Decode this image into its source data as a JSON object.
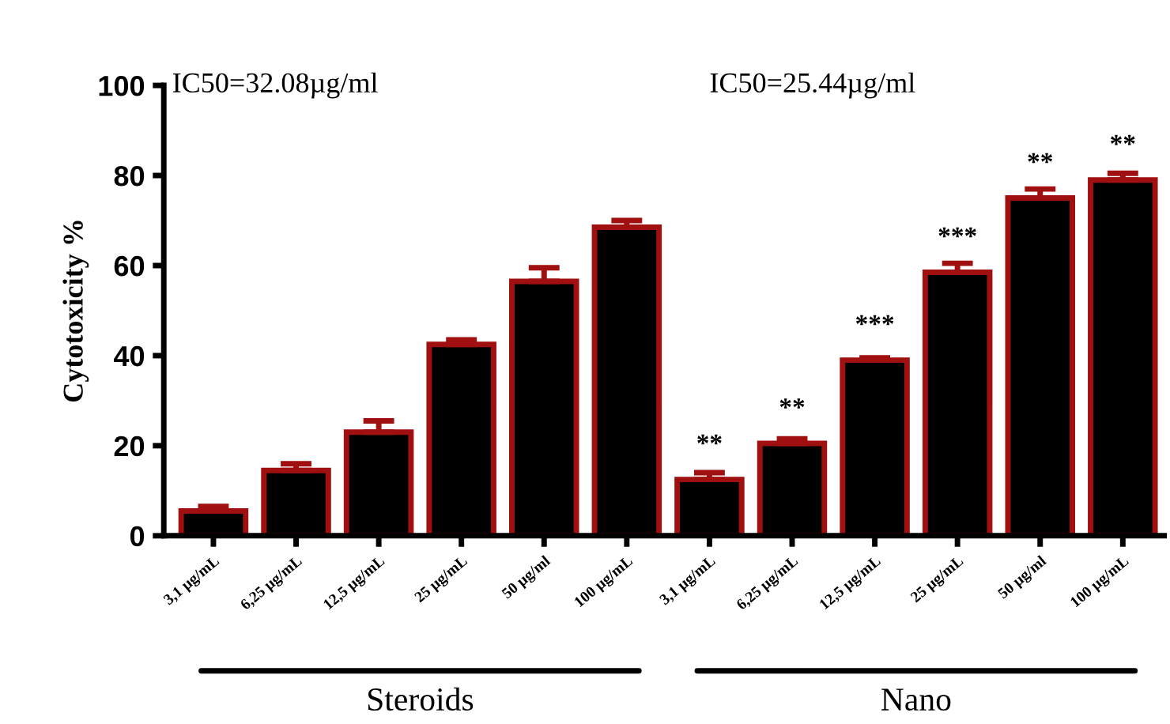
{
  "chart_data": {
    "type": "bar",
    "ylabel": "Cytotoxicity %",
    "categories": [
      "3,1 µg/mL",
      "6,25 µg/mL",
      "12,5 µg/mL",
      "25 µg/mL",
      "50 µg/ml",
      "100 µg/mL",
      "3,1 µg/mL",
      "6,25 µg/mL",
      "12,5 µg/mL",
      "25 µg/mL",
      "50 µg/ml",
      "100 µg/mL"
    ],
    "values": [
      5.5,
      14.5,
      23,
      42.5,
      56.5,
      68.5,
      12.5,
      20.5,
      39,
      58.5,
      75,
      79
    ],
    "errors": [
      1,
      1.5,
      2.5,
      1,
      3,
      1.5,
      1.5,
      1,
      0.5,
      2,
      2,
      1.5
    ],
    "value_labels": [
      null,
      null,
      null,
      null,
      null,
      null,
      "**",
      "**",
      "***",
      "***",
      "**",
      "**"
    ],
    "color": "#000000",
    "ylim": [
      0,
      100
    ],
    "yticks": [
      0,
      20,
      40,
      60,
      80,
      100
    ],
    "grid": false,
    "annotations": [
      "IC50=32.08µg/ml",
      "IC50=25.44µg/ml",
      "Steroids",
      "Nano"
    ]
  }
}
